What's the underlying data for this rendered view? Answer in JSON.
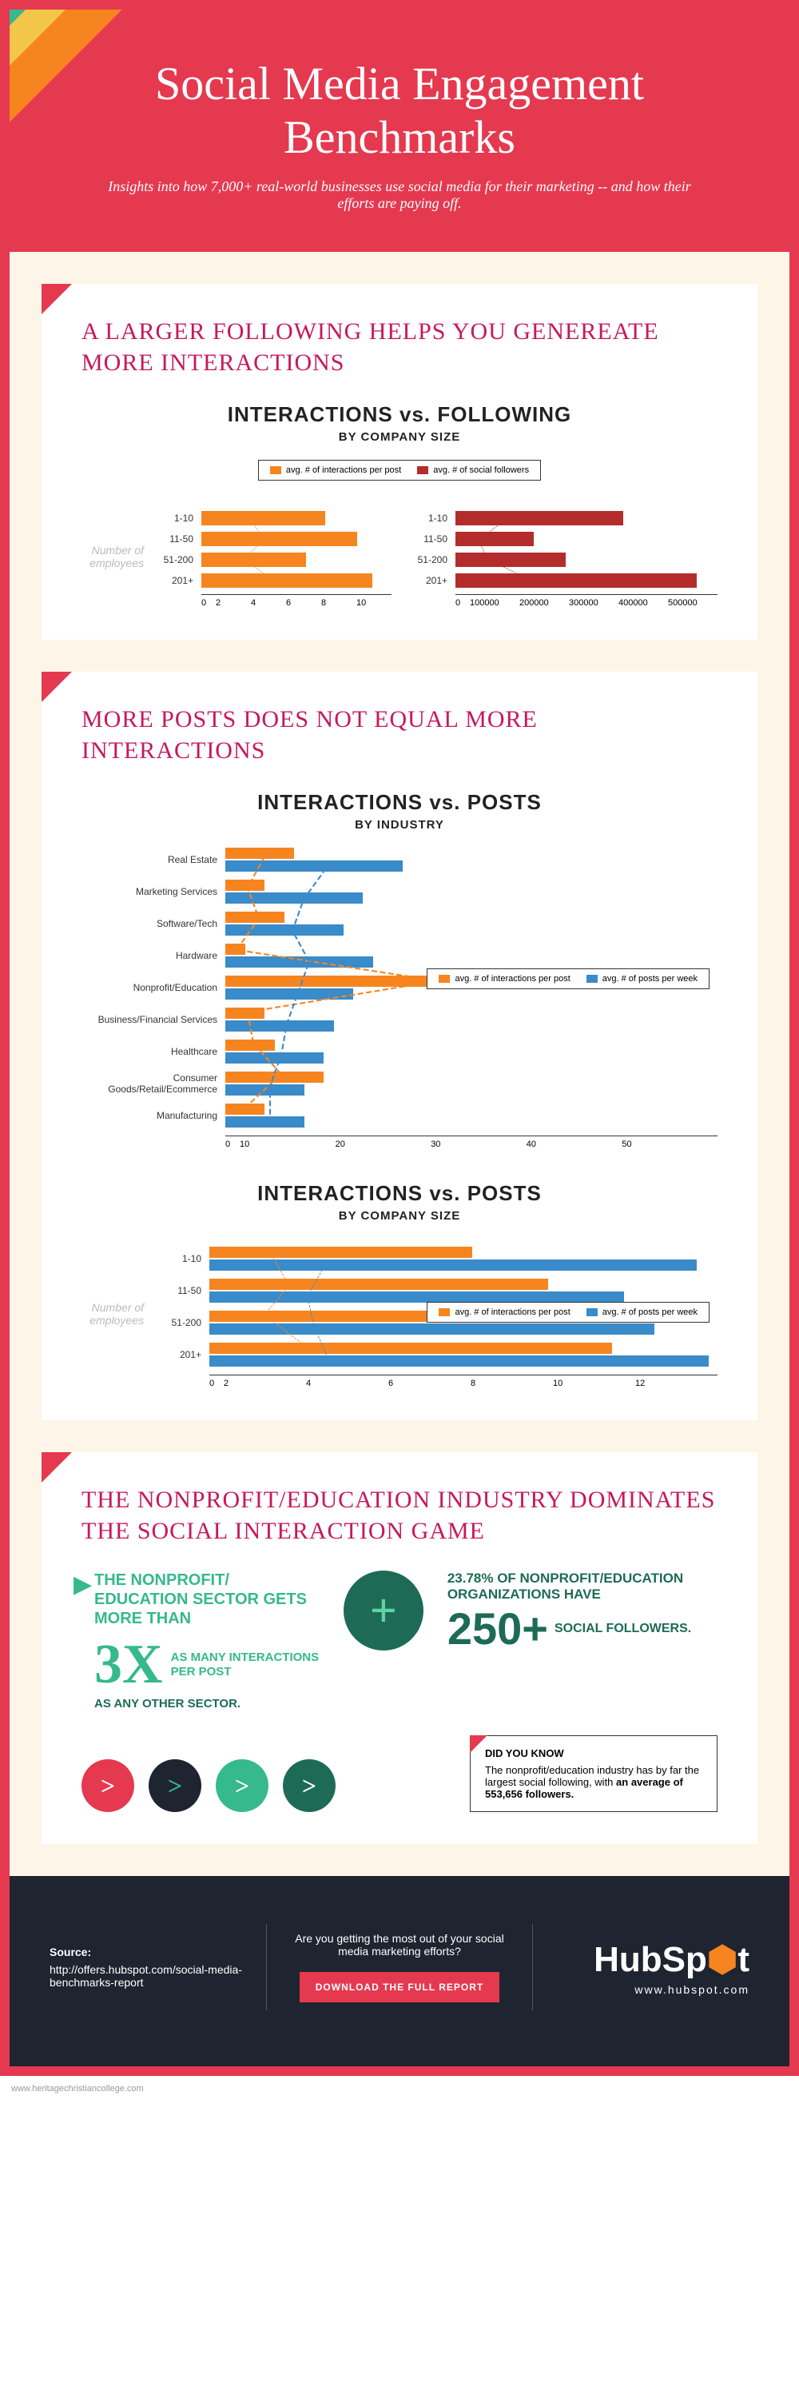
{
  "header": {
    "title": "Social Media Engagement Benchmarks",
    "subtitle": "Insights into how 7,000+ real-world businesses use social media for their marketing -- and how their efforts are paying off.",
    "stripe_colors": [
      "#2a2f33",
      "#36b98c",
      "#f3c548",
      "#f6851f"
    ]
  },
  "section1": {
    "title": "A LARGER FOLLOWING HELPS YOU GENEREATE MORE INTERACTIONS",
    "chart_title": "INTERACTIONS vs. FOLLOWING",
    "chart_sub": "BY COMPANY SIZE",
    "legend": [
      {
        "label": "avg. # of interactions per post",
        "color": "#f6851f"
      },
      {
        "label": "avg. # of social followers",
        "color": "#b42c2c"
      }
    ],
    "ylabel": "Number of employees",
    "left_chart": {
      "color": "#f6851f",
      "categories": [
        "1-10",
        "11-50",
        "51-200",
        "201+"
      ],
      "values": [
        6.5,
        8.2,
        5.5,
        9.0
      ],
      "xmax": 10,
      "xticks": [
        0,
        2,
        4,
        6,
        8,
        10
      ]
    },
    "right_chart": {
      "color": "#b42c2c",
      "categories": [
        "1-10",
        "11-50",
        "51-200",
        "201+"
      ],
      "values": [
        320000,
        150000,
        210000,
        460000
      ],
      "xmax": 500000,
      "xticks": [
        "0",
        "100000",
        "200000",
        "300000",
        "400000",
        "500000"
      ]
    }
  },
  "section2": {
    "title": "MORE POSTS DOES NOT EQUAL MORE INTERACTIONS",
    "chart1": {
      "title": "INTERACTIONS vs. POSTS",
      "sub": "BY INDUSTRY",
      "legend": [
        {
          "label": "avg. # of interactions per post",
          "color": "#f6851f"
        },
        {
          "label": "avg. # of posts per week",
          "color": "#3a8bc9"
        }
      ],
      "categories": [
        "Real Estate",
        "Marketing Services",
        "Software/Tech",
        "Hardware",
        "Nonprofit/Education",
        "Business/Financial Services",
        "Healthcare",
        "Consumer Goods/Retail/Ecommerce",
        "Manufacturing"
      ],
      "interactions": [
        7,
        4,
        6,
        2,
        38,
        4,
        5,
        10,
        4
      ],
      "posts": [
        18,
        14,
        12,
        15,
        13,
        11,
        10,
        8,
        8
      ],
      "xmax": 50,
      "xticks": [
        0,
        10,
        20,
        30,
        40,
        50
      ]
    },
    "chart2": {
      "title": "INTERACTIONS vs. POSTS",
      "sub": "BY COMPANY SIZE",
      "ylabel": "Number of employees",
      "legend": [
        {
          "label": "avg. # of interactions per post",
          "color": "#f6851f"
        },
        {
          "label": "avg. # of posts per week",
          "color": "#3a8bc9"
        }
      ],
      "categories": [
        "1-10",
        "11-50",
        "51-200",
        "201+"
      ],
      "interactions": [
        6.2,
        8.0,
        5.5,
        9.5
      ],
      "posts": [
        11.5,
        9.8,
        10.5,
        11.8
      ],
      "xmax": 12,
      "xticks": [
        0,
        2,
        4,
        6,
        8,
        10,
        12
      ]
    }
  },
  "section3": {
    "title": "THE NONPROFIT/EDUCATION INDUSTRY DOMINATES THE SOCIAL INTERACTION GAME",
    "left_top": "THE NONPROFIT/ EDUCATION SECTOR GETS MORE THAN",
    "big": "3X",
    "left_bottom1": "AS MANY INTERACTIONS PER POST",
    "left_bottom2": "AS ANY OTHER SECTOR.",
    "right_pct": "23.78% OF NONPROFIT/EDUCATION ORGANIZATIONS HAVE",
    "big250": "250+",
    "followers": "SOCIAL FOLLOWERS.",
    "dyk_title": "DID YOU KNOW",
    "dyk_body": "The nonprofit/education industry has by far the largest social following, with an average of 553,656 followers.",
    "arrows": [
      {
        "bg": "#e53950",
        "fg": "#fff"
      },
      {
        "bg": "#1e2430",
        "fg": "#36b98c"
      },
      {
        "bg": "#36b98c",
        "fg": "#fff"
      },
      {
        "bg": "#1d6b56",
        "fg": "#fff"
      }
    ]
  },
  "footer": {
    "source_label": "Source:",
    "source_url": "http://offers.hubspot.com/social-media-benchmarks-report",
    "cta_text": "Are you getting the most out of your social media marketing efforts?",
    "button": "DOWNLOAD THE FULL  REPORT",
    "logo": "HubSpot",
    "url": "www.hubspot.com"
  },
  "credit": "www.heritagechristiancollege.com"
}
